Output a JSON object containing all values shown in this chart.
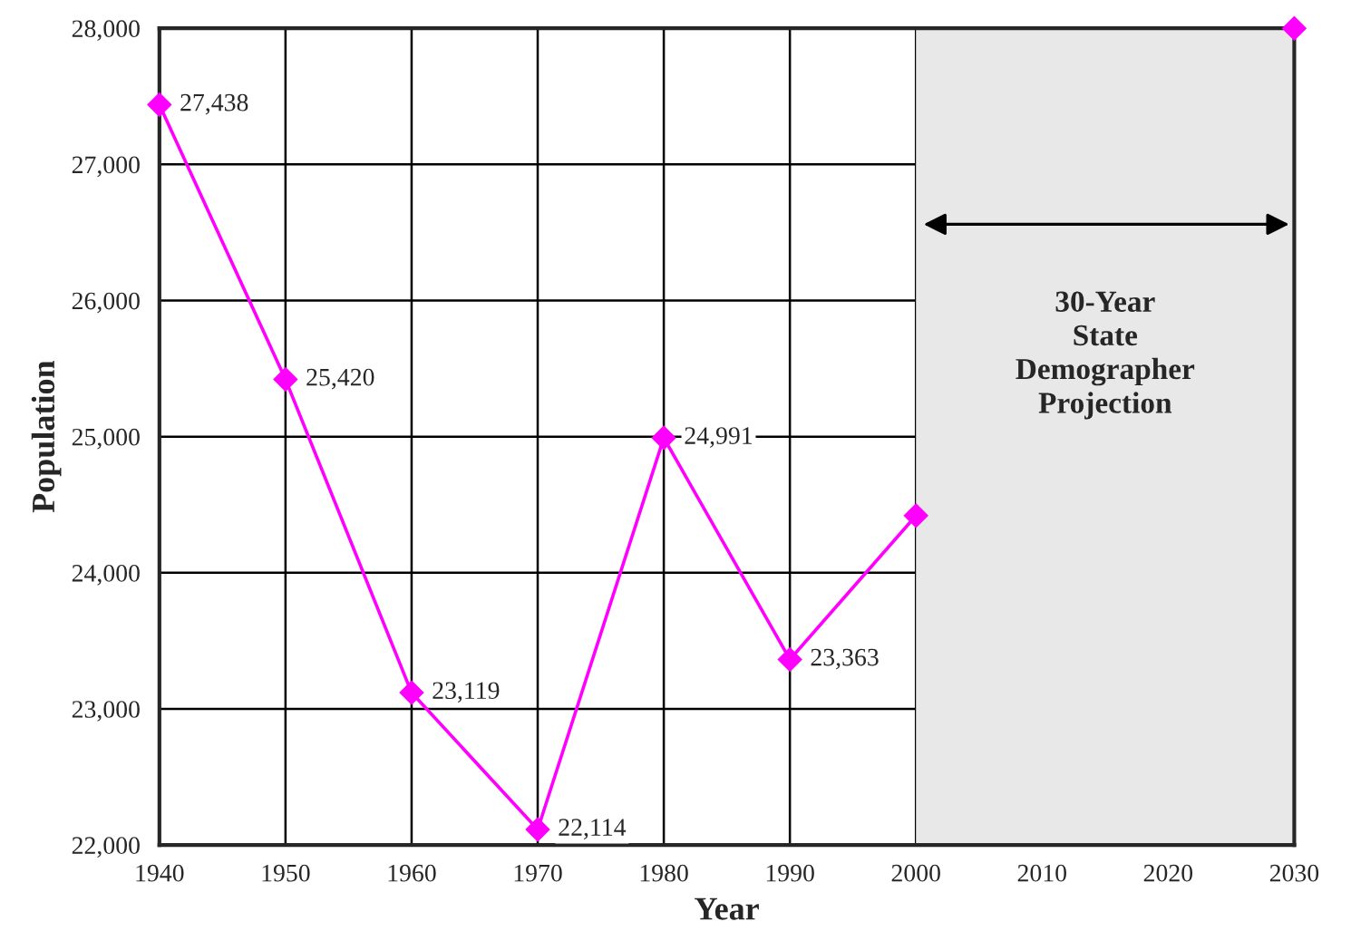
{
  "chart_data": {
    "type": "line",
    "xlabel": "Year",
    "ylabel": "Population",
    "x": [
      1940,
      1950,
      1960,
      1970,
      1980,
      1990,
      2000,
      2010,
      2020,
      2030
    ],
    "series": [
      {
        "color": "#ff00ff",
        "values": [
          27438,
          25420,
          23119,
          22114,
          24991,
          23363,
          24420,
          null,
          null,
          28000
        ],
        "value_labels": [
          "27,438",
          "25,420",
          "23,119",
          "22,114",
          "24,991",
          "23,363",
          null,
          null,
          null,
          null
        ]
      }
    ],
    "xlim": [
      1940,
      2030
    ],
    "xticks": [
      1940,
      1950,
      1960,
      1970,
      1980,
      1990,
      2000,
      2010,
      2020,
      2030
    ],
    "ylim": [
      22000,
      28000
    ],
    "yticks": [
      {
        "value": 22000,
        "label": "22,000"
      },
      {
        "value": 23000,
        "label": "23,000"
      },
      {
        "value": 24000,
        "label": "24,000"
      },
      {
        "value": 25000,
        "label": "25,000"
      },
      {
        "value": 26000,
        "label": "26,000"
      },
      {
        "value": 27000,
        "label": "27,000"
      },
      {
        "value": 28000,
        "label": "28,000"
      }
    ],
    "grid": true,
    "marker": "diamond",
    "line_style": "solid",
    "legend": false,
    "bands": [
      {
        "axis": "x",
        "from": 2000,
        "to": 2030,
        "label": "30-Year\nState\nDemographer\nProjection",
        "color": "#e8e8e8"
      }
    ]
  }
}
